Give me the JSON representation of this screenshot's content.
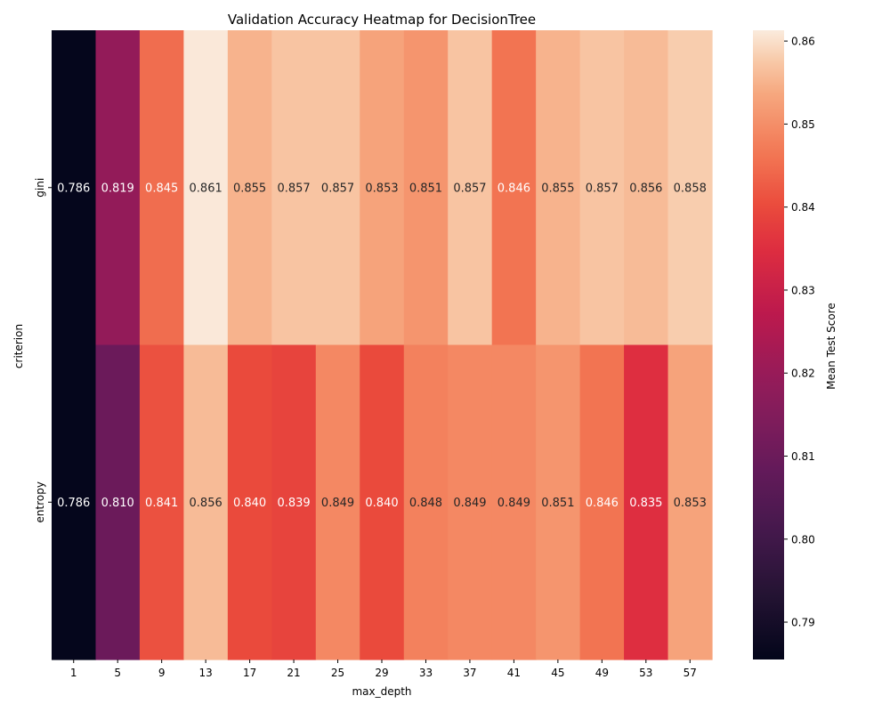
{
  "chart_data": {
    "type": "heatmap",
    "title": "Validation Accuracy Heatmap for DecisionTree",
    "xlabel": "max_depth",
    "ylabel": "criterion",
    "x": [
      "1",
      "5",
      "9",
      "13",
      "17",
      "21",
      "25",
      "29",
      "33",
      "37",
      "41",
      "45",
      "49",
      "53",
      "57"
    ],
    "y": [
      "gini",
      "entropy"
    ],
    "values": [
      [
        0.786,
        0.819,
        0.845,
        0.861,
        0.855,
        0.857,
        0.857,
        0.853,
        0.851,
        0.857,
        0.846,
        0.855,
        0.857,
        0.856,
        0.858
      ],
      [
        0.786,
        0.81,
        0.841,
        0.856,
        0.84,
        0.839,
        0.849,
        0.84,
        0.848,
        0.849,
        0.849,
        0.851,
        0.846,
        0.835,
        0.853
      ]
    ],
    "colorbar": {
      "label": "Mean Test Score",
      "range": [
        0.7855,
        0.8613
      ],
      "ticks": [
        "0.79",
        "0.80",
        "0.81",
        "0.82",
        "0.83",
        "0.84",
        "0.85",
        "0.86"
      ],
      "colormap": "rocket"
    },
    "grid": false
  }
}
